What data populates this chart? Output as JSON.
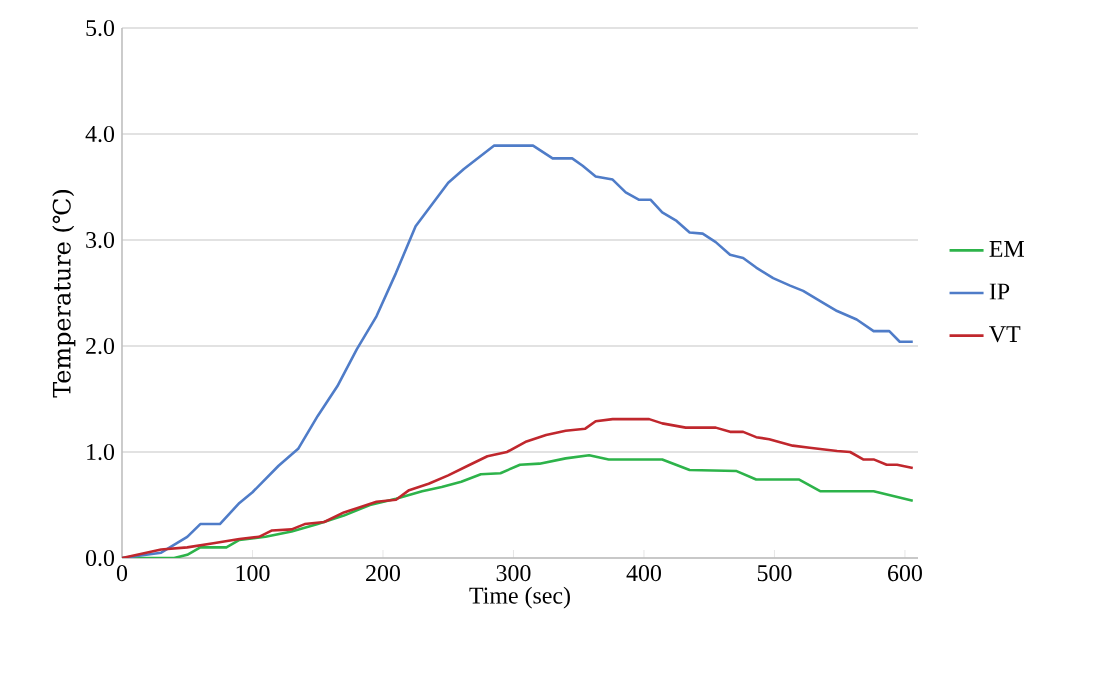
{
  "chart_data": {
    "type": "line",
    "xlabel": "Time (sec)",
    "ylabel": "Temperature (℃)",
    "xlim": [
      0,
      610
    ],
    "ylim": [
      0,
      5
    ],
    "xticks": [
      0,
      100,
      200,
      300,
      400,
      500,
      600
    ],
    "yticks": [
      {
        "value": 0,
        "label": "0.0"
      },
      {
        "value": 1,
        "label": "1.0"
      },
      {
        "value": 2,
        "label": "2.0"
      },
      {
        "value": 3,
        "label": "3.0"
      },
      {
        "value": 4,
        "label": "4.0"
      },
      {
        "value": 5,
        "label": "5.0"
      }
    ],
    "grid": "y",
    "legend": "right",
    "marker": "none",
    "line_style": "solid",
    "series": [
      {
        "name": "EM",
        "color": "#2db34a",
        "x": [
          0,
          40,
          50,
          60,
          80,
          90,
          110,
          130,
          150,
          170,
          190,
          210,
          230,
          245,
          260,
          275,
          290,
          305,
          320,
          340,
          358,
          373,
          414,
          435,
          471,
          486,
          519,
          535,
          576,
          606
        ],
        "values": [
          0,
          0,
          0.03,
          0.1,
          0.1,
          0.17,
          0.2,
          0.25,
          0.32,
          0.4,
          0.5,
          0.56,
          0.63,
          0.67,
          0.72,
          0.79,
          0.8,
          0.88,
          0.89,
          0.94,
          0.97,
          0.93,
          0.93,
          0.83,
          0.82,
          0.74,
          0.74,
          0.63,
          0.63,
          0.54
        ]
      },
      {
        "name": "IP",
        "color": "#4f7cc8",
        "x": [
          0,
          30,
          50,
          60,
          75,
          90,
          100,
          120,
          135,
          150,
          165,
          180,
          195,
          210,
          225,
          250,
          262,
          285,
          315,
          330,
          345,
          353,
          363,
          376,
          386,
          396,
          405,
          414,
          425,
          435,
          445,
          455,
          466,
          476,
          486,
          499,
          512,
          522,
          537,
          548,
          563,
          576,
          588,
          596,
          606
        ],
        "values": [
          0,
          0.05,
          0.2,
          0.32,
          0.32,
          0.52,
          0.62,
          0.87,
          1.03,
          1.34,
          1.62,
          1.97,
          2.28,
          2.69,
          3.13,
          3.54,
          3.67,
          3.89,
          3.89,
          3.77,
          3.77,
          3.7,
          3.6,
          3.57,
          3.45,
          3.38,
          3.38,
          3.26,
          3.18,
          3.07,
          3.06,
          2.98,
          2.86,
          2.83,
          2.74,
          2.64,
          2.57,
          2.52,
          2.41,
          2.33,
          2.25,
          2.14,
          2.14,
          2.04,
          2.04
        ]
      },
      {
        "name": "VT",
        "color": "#c0272d",
        "x": [
          0,
          30,
          50,
          70,
          90,
          105,
          115,
          130,
          140,
          155,
          170,
          180,
          195,
          210,
          220,
          235,
          250,
          265,
          280,
          295,
          310,
          325,
          340,
          355,
          363,
          376,
          404,
          414,
          432,
          455,
          466,
          476,
          486,
          496,
          514,
          527,
          548,
          558,
          568,
          576,
          586,
          594,
          606
        ],
        "values": [
          0,
          0.08,
          0.1,
          0.14,
          0.18,
          0.2,
          0.26,
          0.27,
          0.32,
          0.34,
          0.43,
          0.47,
          0.53,
          0.55,
          0.64,
          0.7,
          0.78,
          0.87,
          0.96,
          1.0,
          1.1,
          1.16,
          1.2,
          1.22,
          1.29,
          1.31,
          1.31,
          1.27,
          1.23,
          1.23,
          1.19,
          1.19,
          1.14,
          1.12,
          1.06,
          1.04,
          1.01,
          1.0,
          0.93,
          0.93,
          0.88,
          0.88,
          0.85
        ]
      }
    ]
  }
}
